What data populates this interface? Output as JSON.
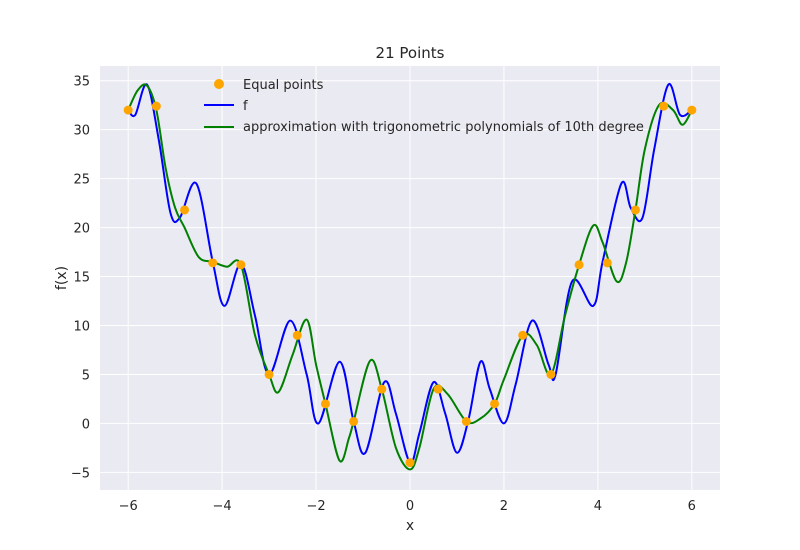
{
  "chart_data": {
    "type": "line",
    "title": "21 Points",
    "xlabel": "x",
    "ylabel": "f(x)",
    "xlim": [
      -6.6,
      6.6
    ],
    "ylim": [
      -6.8,
      36.5
    ],
    "xticks": [
      -6,
      -4,
      -2,
      0,
      2,
      4,
      6
    ],
    "yticks": [
      -5,
      0,
      5,
      10,
      15,
      20,
      25,
      30,
      35
    ],
    "xtick_labels": [
      "−6",
      "−4",
      "−2",
      "0",
      "2",
      "4",
      "6"
    ],
    "ytick_labels": [
      "−5",
      "0",
      "5",
      "10",
      "15",
      "20",
      "25",
      "30",
      "35"
    ],
    "grid": true,
    "legend_position": "upper-left",
    "colors": {
      "background": "#eaeaf2",
      "grid": "#ffffff",
      "points": "#ffa500",
      "f": "#0000ff",
      "approx": "#008000"
    },
    "series": [
      {
        "name": "Equal points",
        "kind": "scatter",
        "x": [
          -6.0,
          -5.4,
          -4.8,
          -4.2,
          -3.6,
          -3.0,
          -2.4,
          -1.8,
          -1.2,
          -0.6,
          0.0,
          0.6,
          1.2,
          1.8,
          2.4,
          3.0,
          3.6,
          4.2,
          4.8,
          5.4,
          6.0
        ],
        "y": [
          32.0,
          32.4,
          21.8,
          16.4,
          16.2,
          5.0,
          9.0,
          2.0,
          0.2,
          3.5,
          -4.0,
          3.5,
          0.2,
          2.0,
          9.0,
          5.0,
          16.2,
          16.4,
          21.8,
          32.4,
          32.0
        ]
      },
      {
        "name": "f",
        "kind": "line",
        "x": [
          -6.0,
          -5.85,
          -5.6,
          -5.35,
          -5.1,
          -4.9,
          -4.55,
          -4.2,
          -3.95,
          -3.6,
          -3.3,
          -3.0,
          -2.55,
          -2.2,
          -1.95,
          -1.5,
          -1.2,
          -0.95,
          -0.55,
          -0.3,
          0.0,
          0.2,
          0.5,
          0.75,
          1.0,
          1.25,
          1.5,
          1.7,
          2.0,
          2.25,
          2.6,
          2.95,
          3.1,
          3.45,
          3.9,
          4.1,
          4.5,
          4.7,
          4.95,
          5.2,
          5.5,
          5.75,
          6.0
        ],
        "y": [
          32.0,
          31.5,
          34.6,
          29.0,
          21.5,
          21.0,
          24.5,
          16.5,
          12.0,
          16.3,
          11.0,
          5.0,
          10.5,
          5.0,
          0.0,
          6.3,
          0.2,
          -3.0,
          4.2,
          1.0,
          -4.0,
          -1.0,
          4.2,
          1.0,
          -3.0,
          0.5,
          6.3,
          3.5,
          0.0,
          4.0,
          10.5,
          6.0,
          5.0,
          14.5,
          12.0,
          16.5,
          24.5,
          22.0,
          21.0,
          28.0,
          34.6,
          31.5,
          32.0
        ]
      },
      {
        "name": "approximation with trigonometric polynomials of 10th degree",
        "kind": "line",
        "x": [
          -6.0,
          -5.8,
          -5.6,
          -5.4,
          -5.2,
          -5.0,
          -4.8,
          -4.5,
          -4.2,
          -3.9,
          -3.6,
          -3.3,
          -3.0,
          -2.8,
          -2.5,
          -2.2,
          -2.0,
          -1.8,
          -1.5,
          -1.3,
          -1.2,
          -0.85,
          -0.6,
          -0.3,
          0.0,
          0.2,
          0.5,
          0.8,
          1.2,
          1.5,
          1.8,
          2.0,
          2.4,
          2.7,
          3.0,
          3.3,
          3.6,
          3.9,
          4.1,
          4.4,
          4.6,
          4.8,
          5.0,
          5.3,
          5.6,
          5.8,
          6.0
        ],
        "y": [
          32.0,
          34.0,
          34.5,
          32.0,
          26.0,
          22.0,
          20.0,
          17.0,
          16.5,
          16.0,
          16.2,
          9.0,
          5.0,
          3.2,
          7.0,
          10.6,
          6.0,
          2.0,
          -3.8,
          -1.5,
          0.2,
          6.4,
          3.5,
          -2.5,
          -4.7,
          -2.5,
          3.5,
          3.0,
          0.2,
          0.5,
          2.0,
          4.5,
          9.0,
          8.0,
          5.0,
          11.0,
          16.2,
          20.2,
          18.5,
          14.5,
          16.4,
          21.8,
          28.0,
          32.5,
          32.0,
          30.5,
          32.0
        ]
      }
    ]
  }
}
